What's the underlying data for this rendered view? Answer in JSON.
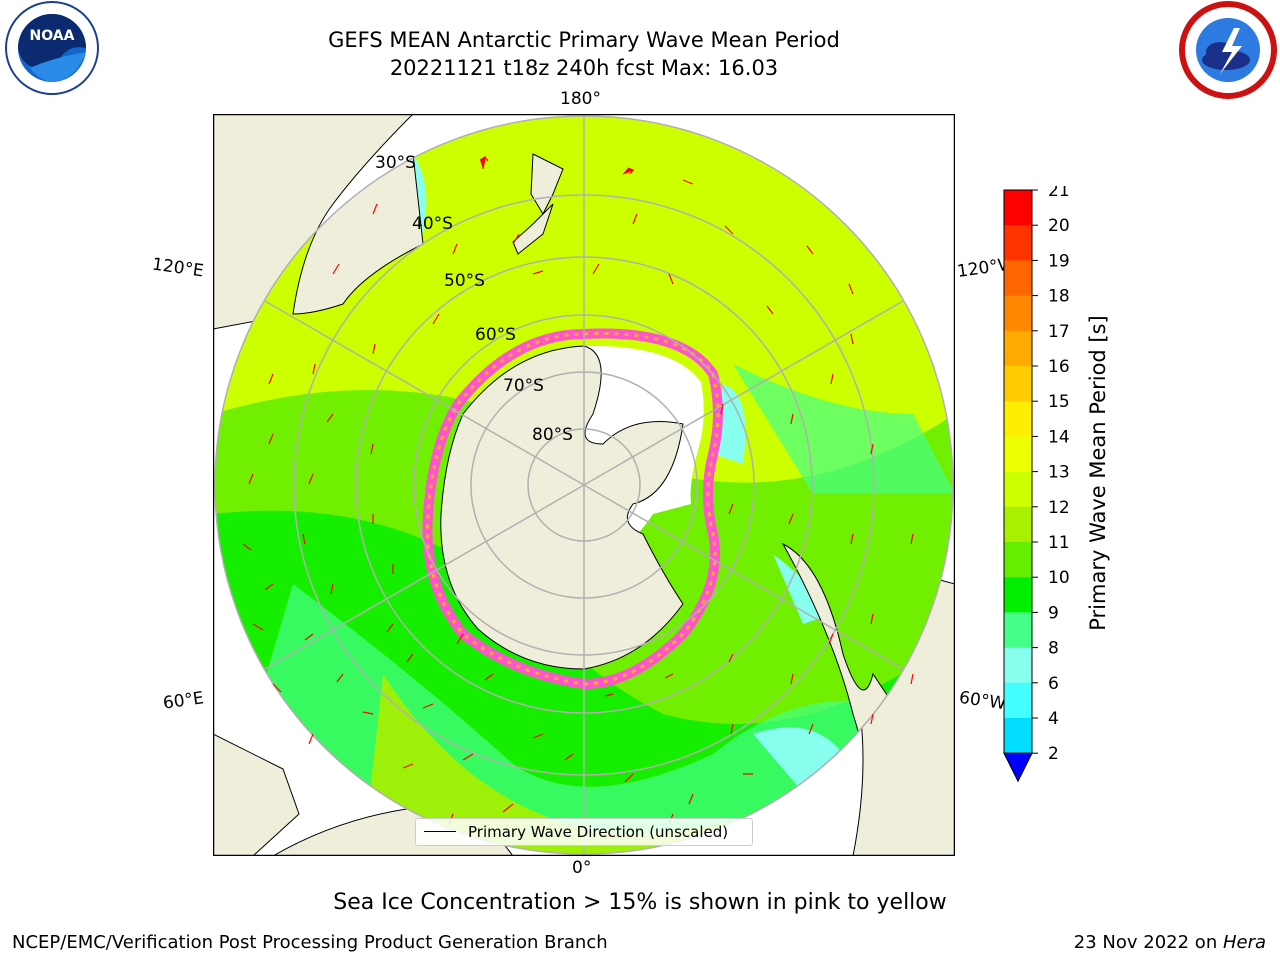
{
  "title": {
    "line1": "GEFS MEAN Antarctic Primary Wave Mean Period",
    "line2": "20221121 t18z 240h fcst   Max: 16.03"
  },
  "logos": {
    "left": {
      "name": "NOAA",
      "icon": "noaa-logo"
    },
    "right": {
      "name": "NATIONAL WEATHER SERVICE",
      "icon": "nws-logo"
    }
  },
  "map": {
    "lon_labels": [
      "180°",
      "120°E",
      "120°W",
      "60°E",
      "60°W",
      "0°"
    ],
    "lat_labels": [
      "30°S",
      "40°S",
      "50°S",
      "60°S",
      "70°S",
      "80°S"
    ],
    "legend_label": "Primary Wave Direction (unscaled)"
  },
  "colorbar": {
    "label": "Primary Wave Mean Period [s]",
    "ticks": [
      "21",
      "20",
      "19",
      "18",
      "17",
      "16",
      "15",
      "14",
      "13",
      "12",
      "11",
      "10",
      "9",
      "8",
      "6",
      "4",
      "2"
    ],
    "colors": [
      "#ff0000",
      "#ff3300",
      "#ff6600",
      "#ff8800",
      "#ffaa00",
      "#ffcc00",
      "#ffee00",
      "#eeff00",
      "#ccff00",
      "#aaee00",
      "#66ee00",
      "#00ee00",
      "#44ff88",
      "#88ffee",
      "#44ffff",
      "#00ddff",
      "#0077ff"
    ],
    "extend_color": "#0000ff"
  },
  "sea_ice_note": "Sea Ice Concentration > 15% is shown in pink to yellow",
  "footer": {
    "left": "NCEP/EMC/Verification Post Processing Product Generation Branch",
    "right_date": "23 Nov 2022 on ",
    "right_system": "Hera"
  }
}
